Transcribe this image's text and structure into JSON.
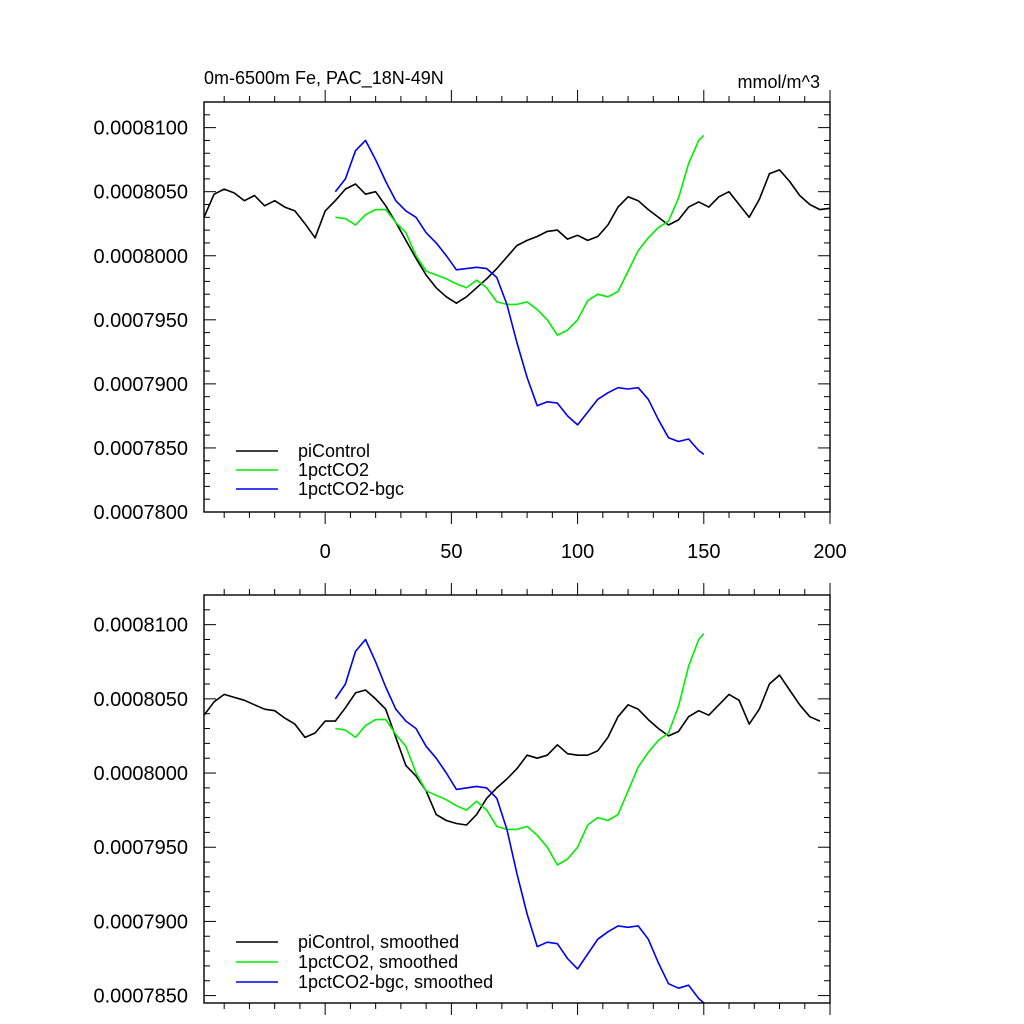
{
  "chart_data": [
    {
      "type": "line",
      "title": "0m-6500m Fe, PAC_18N-49N",
      "units": "mmol/m^3",
      "xlim": [
        -48,
        200
      ],
      "ylim": [
        0.00078,
        0.000812
      ],
      "x_ticks": [
        0,
        50,
        100,
        150,
        200
      ],
      "y_ticks": [
        0.00078,
        0.000785,
        0.00079,
        0.000795,
        0.0008,
        0.000805,
        0.00081
      ],
      "y_tick_labels": [
        "0.0007800",
        "0.0007850",
        "0.0007900",
        "0.0007950",
        "0.0008000",
        "0.0008050",
        "0.0008100"
      ],
      "grid": false,
      "legend_position": "bottom-left",
      "series": [
        {
          "name": "piControl",
          "color": "#000000",
          "x": [
            -48,
            -44,
            -40,
            -36,
            -32,
            -28,
            -24,
            -20,
            -16,
            -12,
            -8,
            -4,
            0,
            4,
            8,
            12,
            16,
            20,
            24,
            28,
            32,
            36,
            40,
            44,
            48,
            52,
            56,
            60,
            64,
            68,
            72,
            76,
            80,
            84,
            88,
            92,
            96,
            100,
            104,
            108,
            112,
            116,
            120,
            124,
            128,
            132,
            136,
            140,
            144,
            148,
            152,
            156,
            160,
            164,
            168,
            172,
            176,
            180,
            184,
            188,
            192,
            196,
            200
          ],
          "y": [
            0.000803,
            0.0008048,
            0.0008052,
            0.0008049,
            0.0008043,
            0.0008047,
            0.0008039,
            0.0008043,
            0.0008038,
            0.0008035,
            0.0008025,
            0.0008014,
            0.0008035,
            0.0008043,
            0.0008052,
            0.0008056,
            0.0008048,
            0.000805,
            0.0008039,
            0.0008026,
            0.0008012,
            0.0007998,
            0.0007985,
            0.0007975,
            0.0007968,
            0.0007963,
            0.0007968,
            0.0007975,
            0.0007982,
            0.000799,
            0.0007999,
            0.0008008,
            0.0008012,
            0.0008015,
            0.0008019,
            0.000802,
            0.0008013,
            0.0008016,
            0.0008012,
            0.0008015,
            0.0008024,
            0.0008038,
            0.0008046,
            0.0008043,
            0.0008036,
            0.000803,
            0.0008024,
            0.0008028,
            0.0008038,
            0.0008042,
            0.0008038,
            0.0008046,
            0.000805,
            0.000804,
            0.000803,
            0.0008044,
            0.0008064,
            0.0008067,
            0.0008058,
            0.0008047,
            0.000804,
            0.0008036,
            0.0008037
          ]
        },
        {
          "name": "1pctCO2",
          "color": "#00ee00",
          "x": [
            4,
            8,
            12,
            16,
            20,
            24,
            28,
            32,
            36,
            40,
            44,
            48,
            52,
            56,
            60,
            64,
            68,
            72,
            76,
            80,
            84,
            88,
            92,
            96,
            100,
            104,
            108,
            112,
            116,
            120,
            124,
            128,
            132,
            136,
            140,
            144,
            148,
            150
          ],
          "y": [
            0.000803,
            0.0008029,
            0.0008024,
            0.0008032,
            0.0008036,
            0.0008036,
            0.0008026,
            0.0008018,
            0.0008,
            0.0007988,
            0.0007985,
            0.0007982,
            0.0007978,
            0.0007975,
            0.0007981,
            0.0007975,
            0.0007964,
            0.0007962,
            0.0007962,
            0.0007964,
            0.0007958,
            0.000795,
            0.0007938,
            0.0007942,
            0.000795,
            0.0007965,
            0.000797,
            0.0007968,
            0.0007972,
            0.0007988,
            0.0008004,
            0.0008014,
            0.0008022,
            0.0008027,
            0.0008045,
            0.0008072,
            0.000809,
            0.0008094
          ]
        },
        {
          "name": "1pctCO2-bgc",
          "color": "#0000ee",
          "x": [
            4,
            8,
            12,
            16,
            20,
            24,
            28,
            32,
            36,
            40,
            44,
            48,
            52,
            56,
            60,
            64,
            68,
            72,
            76,
            80,
            84,
            88,
            92,
            96,
            100,
            104,
            108,
            112,
            116,
            120,
            124,
            128,
            132,
            136,
            140,
            144,
            148,
            150
          ],
          "y": [
            0.000805,
            0.000806,
            0.0008082,
            0.000809,
            0.0008075,
            0.0008058,
            0.0008043,
            0.0008035,
            0.000803,
            0.0008018,
            0.000801,
            0.0008,
            0.0007989,
            0.000799,
            0.0007991,
            0.000799,
            0.0007983,
            0.0007962,
            0.0007932,
            0.0007905,
            0.0007883,
            0.0007886,
            0.0007885,
            0.0007875,
            0.0007868,
            0.0007878,
            0.0007888,
            0.0007893,
            0.0007897,
            0.0007896,
            0.0007897,
            0.0007888,
            0.0007872,
            0.0007858,
            0.0007855,
            0.0007857,
            0.0007848,
            0.0007845
          ]
        }
      ]
    },
    {
      "type": "line",
      "title": "",
      "xlim": [
        -48,
        200
      ],
      "ylim": [
        0.0007845,
        0.000812
      ],
      "x_ticks": [
        0,
        50,
        100,
        150,
        200
      ],
      "y_ticks": [
        0.000785,
        0.00079,
        0.000795,
        0.0008,
        0.000805,
        0.00081
      ],
      "y_tick_labels": [
        "0.0007850",
        "0.0007900",
        "0.0007950",
        "0.0008000",
        "0.0008050",
        "0.0008100"
      ],
      "grid": false,
      "legend_position": "bottom-left",
      "series": [
        {
          "name": "piControl, smoothed",
          "color": "#000000",
          "x": [
            -48,
            -44,
            -40,
            -36,
            -32,
            -28,
            -24,
            -20,
            -16,
            -12,
            -8,
            -4,
            0,
            4,
            8,
            12,
            16,
            20,
            24,
            28,
            32,
            36,
            40,
            44,
            48,
            52,
            56,
            60,
            64,
            68,
            72,
            76,
            80,
            84,
            88,
            92,
            96,
            100,
            104,
            108,
            112,
            116,
            120,
            124,
            128,
            132,
            136,
            140,
            144,
            148,
            152,
            156,
            160,
            164,
            168,
            172,
            176,
            180,
            184,
            188,
            192,
            196
          ],
          "y": [
            0.0008039,
            0.0008048,
            0.0008053,
            0.0008051,
            0.0008049,
            0.0008046,
            0.0008043,
            0.0008042,
            0.0008037,
            0.0008033,
            0.0008024,
            0.0008027,
            0.0008035,
            0.0008035,
            0.0008044,
            0.0008054,
            0.0008056,
            0.000805,
            0.0008043,
            0.0008024,
            0.0008005,
            0.0007998,
            0.0007988,
            0.0007972,
            0.0007968,
            0.0007966,
            0.0007965,
            0.0007972,
            0.0007983,
            0.000799,
            0.0007996,
            0.0008003,
            0.0008012,
            0.000801,
            0.0008012,
            0.0008019,
            0.0008013,
            0.0008012,
            0.0008012,
            0.0008015,
            0.0008024,
            0.0008038,
            0.0008046,
            0.0008043,
            0.0008036,
            0.000803,
            0.0008025,
            0.0008028,
            0.0008038,
            0.0008042,
            0.0008039,
            0.0008046,
            0.0008053,
            0.0008049,
            0.0008033,
            0.0008043,
            0.000806,
            0.0008066,
            0.0008056,
            0.0008046,
            0.0008038,
            0.0008035
          ]
        },
        {
          "name": "1pctCO2, smoothed",
          "color": "#00ee00",
          "x": [
            4,
            8,
            12,
            16,
            20,
            24,
            28,
            32,
            36,
            40,
            44,
            48,
            52,
            56,
            60,
            64,
            68,
            72,
            76,
            80,
            84,
            88,
            92,
            96,
            100,
            104,
            108,
            112,
            116,
            120,
            124,
            128,
            132,
            136,
            140,
            144,
            148,
            150
          ],
          "y": [
            0.000803,
            0.0008029,
            0.0008024,
            0.0008032,
            0.0008036,
            0.0008036,
            0.0008026,
            0.0008018,
            0.0008,
            0.0007988,
            0.0007985,
            0.0007982,
            0.0007978,
            0.0007975,
            0.0007981,
            0.0007975,
            0.0007964,
            0.0007962,
            0.0007962,
            0.0007964,
            0.0007958,
            0.000795,
            0.0007938,
            0.0007942,
            0.000795,
            0.0007965,
            0.000797,
            0.0007968,
            0.0007972,
            0.0007988,
            0.0008004,
            0.0008014,
            0.0008022,
            0.0008027,
            0.0008045,
            0.0008072,
            0.000809,
            0.0008094
          ]
        },
        {
          "name": "1pctCO2-bgc, smoothed",
          "color": "#0000ee",
          "x": [
            4,
            8,
            12,
            16,
            20,
            24,
            28,
            32,
            36,
            40,
            44,
            48,
            52,
            56,
            60,
            64,
            68,
            72,
            76,
            80,
            84,
            88,
            92,
            96,
            100,
            104,
            108,
            112,
            116,
            120,
            124,
            128,
            132,
            136,
            140,
            144,
            148,
            150
          ],
          "y": [
            0.000805,
            0.000806,
            0.0008082,
            0.000809,
            0.0008075,
            0.0008058,
            0.0008043,
            0.0008035,
            0.000803,
            0.0008018,
            0.000801,
            0.0008,
            0.0007989,
            0.000799,
            0.0007991,
            0.000799,
            0.0007983,
            0.0007962,
            0.0007932,
            0.0007905,
            0.0007883,
            0.0007886,
            0.0007885,
            0.0007875,
            0.0007868,
            0.0007878,
            0.0007888,
            0.0007893,
            0.0007897,
            0.0007896,
            0.0007897,
            0.0007888,
            0.0007872,
            0.0007858,
            0.0007855,
            0.0007857,
            0.0007848,
            0.0007845
          ]
        }
      ]
    }
  ]
}
